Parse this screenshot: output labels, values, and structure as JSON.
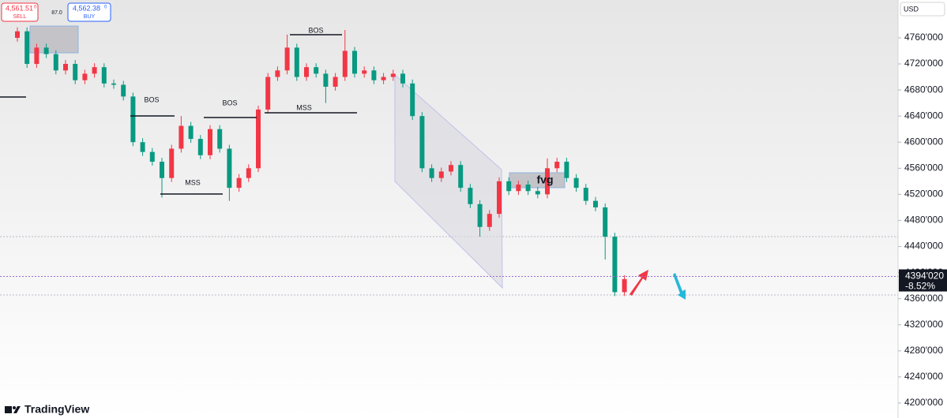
{
  "chart_data": {
    "type": "candlestick",
    "currency": "USD",
    "open": [
      4760,
      4770,
      4720,
      4745,
      4735,
      4710,
      4720,
      4695,
      4705,
      4715,
      4690,
      4688,
      4670,
      4600,
      4585,
      4570,
      4545,
      4590,
      4625,
      4605,
      4580,
      4620,
      4590,
      4530,
      4545,
      4560,
      4650,
      4700,
      4710,
      4745,
      4700,
      4715,
      4705,
      4685,
      4700,
      4740,
      4705,
      4710,
      4695,
      4700,
      4705,
      4690,
      4640,
      4560,
      4545,
      4555,
      4565,
      4530,
      4505,
      4470,
      4490,
      4540,
      4525,
      4535,
      4525,
      4520,
      4560,
      4570,
      4545,
      4530,
      4510,
      4500,
      4455,
      4370
    ],
    "high": [
      4776,
      4776,
      4751,
      4751,
      4741,
      4726,
      4726,
      4711,
      4721,
      4721,
      4696,
      4694,
      4676,
      4606,
      4591,
      4576,
      4596,
      4640,
      4631,
      4611,
      4626,
      4626,
      4596,
      4551,
      4566,
      4656,
      4706,
      4716,
      4765,
      4751,
      4721,
      4721,
      4711,
      4706,
      4772,
      4746,
      4716,
      4716,
      4706,
      4711,
      4711,
      4696,
      4646,
      4566,
      4561,
      4571,
      4571,
      4536,
      4511,
      4496,
      4546,
      4546,
      4541,
      4541,
      4531,
      4575,
      4576,
      4576,
      4551,
      4536,
      4516,
      4506,
      4461,
      4396
    ],
    "low": [
      4754,
      4714,
      4714,
      4729,
      4704,
      4704,
      4689,
      4689,
      4699,
      4684,
      4682,
      4664,
      4594,
      4579,
      4564,
      4515,
      4539,
      4584,
      4599,
      4574,
      4574,
      4584,
      4510,
      4524,
      4539,
      4554,
      4644,
      4694,
      4704,
      4694,
      4694,
      4699,
      4660,
      4679,
      4694,
      4699,
      4699,
      4689,
      4689,
      4694,
      4684,
      4634,
      4554,
      4539,
      4539,
      4549,
      4524,
      4499,
      4455,
      4464,
      4484,
      4519,
      4519,
      4519,
      4514,
      4514,
      4554,
      4539,
      4524,
      4504,
      4494,
      4420,
      4364,
      4364
    ],
    "close": [
      4770,
      4720,
      4745,
      4735,
      4710,
      4720,
      4695,
      4705,
      4715,
      4690,
      4688,
      4670,
      4600,
      4585,
      4570,
      4545,
      4590,
      4625,
      4605,
      4580,
      4620,
      4590,
      4530,
      4545,
      4560,
      4650,
      4700,
      4710,
      4745,
      4700,
      4715,
      4705,
      4685,
      4700,
      4740,
      4705,
      4710,
      4695,
      4700,
      4705,
      4690,
      4640,
      4560,
      4545,
      4555,
      4565,
      4530,
      4505,
      4470,
      4490,
      4540,
      4525,
      4535,
      4525,
      4520,
      4560,
      4570,
      4545,
      4530,
      4510,
      4500,
      4455,
      4370,
      4390
    ],
    "up_color": "#f23645",
    "down_color": "#089981",
    "ylim": [
      4177,
      4818
    ],
    "yticks": [
      {
        "value": 4200,
        "label": "4200'000"
      },
      {
        "value": 4240,
        "label": "4240'000"
      },
      {
        "value": 4280,
        "label": "4280'000"
      },
      {
        "value": 4320,
        "label": "4320'000"
      },
      {
        "value": 4360,
        "label": "4360'000"
      },
      {
        "value": 4400,
        "label": "4400'000"
      },
      {
        "value": 4440,
        "label": "4440'000"
      },
      {
        "value": 4480,
        "label": "4480'000"
      },
      {
        "value": 4520,
        "label": "4520'000"
      },
      {
        "value": 4560,
        "label": "4560'000"
      },
      {
        "value": 4600,
        "label": "4600'000"
      },
      {
        "value": 4640,
        "label": "4640'000"
      },
      {
        "value": 4680,
        "label": "4680'000"
      },
      {
        "value": 4720,
        "label": "4720'000"
      },
      {
        "value": 4760,
        "label": "4760'000"
      }
    ],
    "last_price": {
      "value": 4394.02,
      "label": "4394'020"
    },
    "change": "-8.52%"
  },
  "toolbar": {
    "sell_price": "4,561.51",
    "sell_fraction": "0",
    "sell_label": "SELL",
    "spread": "87.0",
    "buy_price": "4,562.38",
    "buy_fraction": "0",
    "buy_label": "BUY"
  },
  "annotations": {
    "bos_top": "BOS",
    "bos_left": "BOS",
    "bos_mid": "BOS",
    "mss_left": "MSS",
    "mss_mid": "MSS",
    "fvg": "fvg"
  },
  "branding": "TradingView"
}
